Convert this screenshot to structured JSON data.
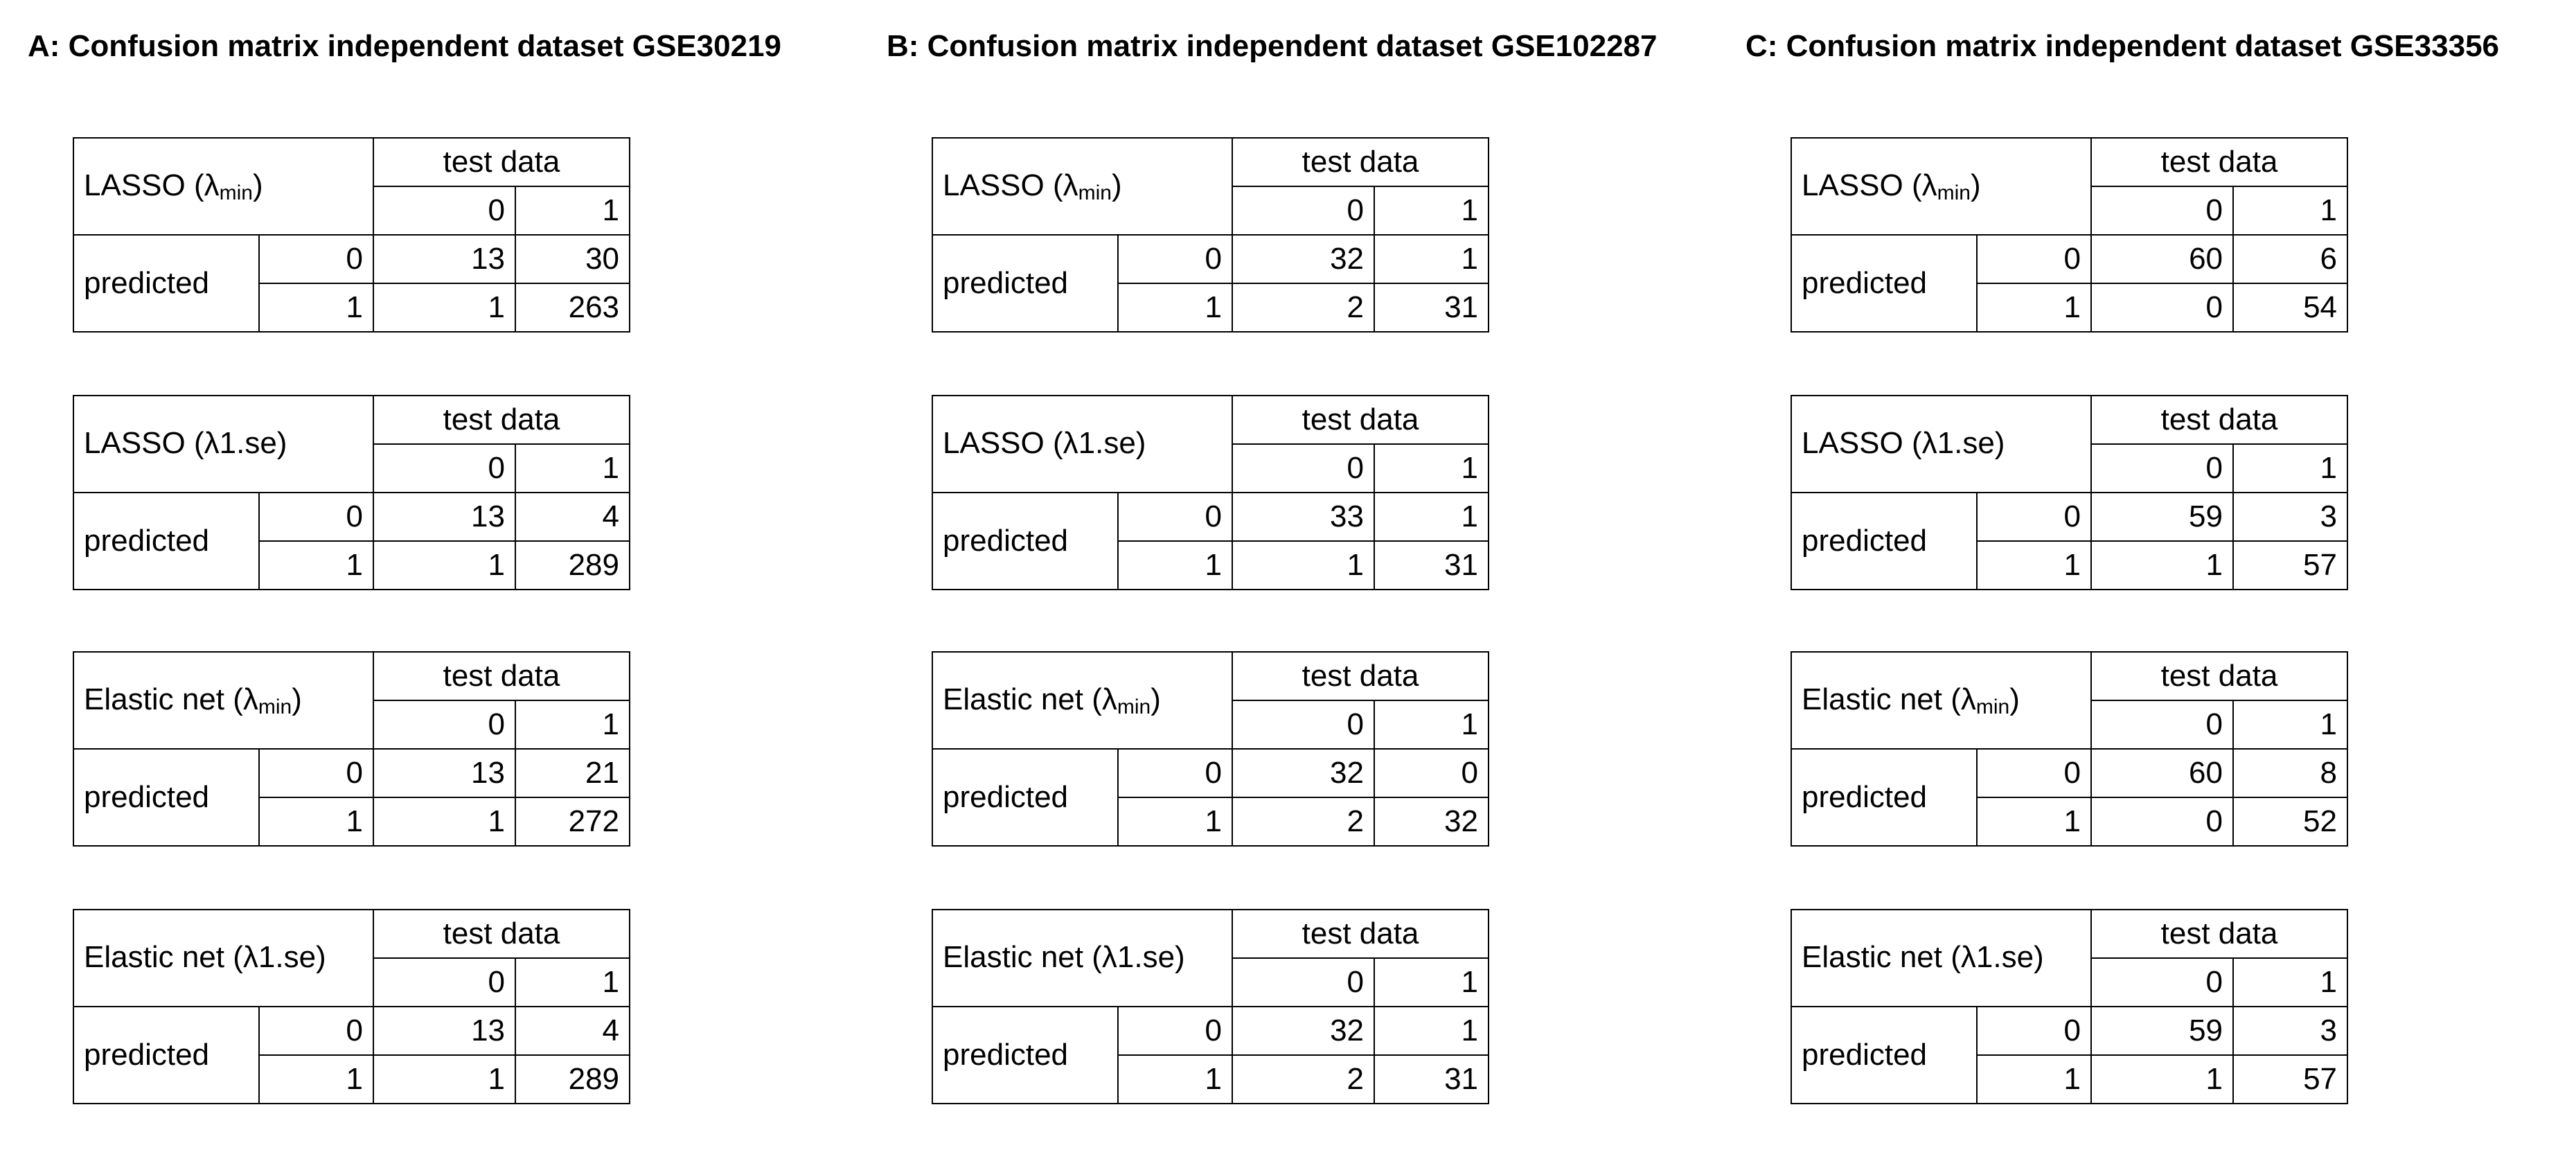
{
  "panels": [
    {
      "title": "A: Confusion matrix independent dataset GSE30219",
      "matrices": [
        {
          "model": "LASSO",
          "lambda_prefix": "(λ",
          "lambda_sub": "min",
          "lambda_suffix": ")",
          "header": "test data",
          "col0": "0",
          "col1": "1",
          "row_label": "predicted",
          "row0": "0",
          "row1": "1",
          "v00": "13",
          "v01": "30",
          "v10": "1",
          "v11": "263"
        },
        {
          "model": "LASSO",
          "lambda_prefix": "(λ1.se)",
          "lambda_sub": "",
          "lambda_suffix": "",
          "header": "test data",
          "col0": "0",
          "col1": "1",
          "row_label": "predicted",
          "row0": "0",
          "row1": "1",
          "v00": "13",
          "v01": "4",
          "v10": "1",
          "v11": "289"
        },
        {
          "model": "Elastic net",
          "lambda_prefix": "(λ",
          "lambda_sub": "min",
          "lambda_suffix": ")",
          "header": "test data",
          "col0": "0",
          "col1": "1",
          "row_label": "predicted",
          "row0": "0",
          "row1": "1",
          "v00": "13",
          "v01": "21",
          "v10": "1",
          "v11": "272"
        },
        {
          "model": "Elastic net",
          "lambda_prefix": "(λ1.se)",
          "lambda_sub": "",
          "lambda_suffix": "",
          "header": "test data",
          "col0": "0",
          "col1": "1",
          "row_label": "predicted",
          "row0": "0",
          "row1": "1",
          "v00": "13",
          "v01": "4",
          "v10": "1",
          "v11": "289"
        }
      ]
    },
    {
      "title": "B: Confusion matrix independent dataset GSE102287",
      "matrices": [
        {
          "model": "LASSO",
          "lambda_prefix": "(λ",
          "lambda_sub": "min",
          "lambda_suffix": ")",
          "header": "test data",
          "col0": "0",
          "col1": "1",
          "row_label": "predicted",
          "row0": "0",
          "row1": "1",
          "v00": "32",
          "v01": "1",
          "v10": "2",
          "v11": "31"
        },
        {
          "model": "LASSO",
          "lambda_prefix": "(λ1.se)",
          "lambda_sub": "",
          "lambda_suffix": "",
          "header": "test data",
          "col0": "0",
          "col1": "1",
          "row_label": "predicted",
          "row0": "0",
          "row1": "1",
          "v00": "33",
          "v01": "1",
          "v10": "1",
          "v11": "31"
        },
        {
          "model": "Elastic net",
          "lambda_prefix": "(λ",
          "lambda_sub": "min",
          "lambda_suffix": ")",
          "header": "test data",
          "col0": "0",
          "col1": "1",
          "row_label": "predicted",
          "row0": "0",
          "row1": "1",
          "v00": "32",
          "v01": "0",
          "v10": "2",
          "v11": "32"
        },
        {
          "model": "Elastic net",
          "lambda_prefix": "(λ1.se)",
          "lambda_sub": "",
          "lambda_suffix": "",
          "header": "test data",
          "col0": "0",
          "col1": "1",
          "row_label": "predicted",
          "row0": "0",
          "row1": "1",
          "v00": "32",
          "v01": "1",
          "v10": "2",
          "v11": "31"
        }
      ]
    },
    {
      "title": "C: Confusion matrix independent dataset GSE33356",
      "matrices": [
        {
          "model": "LASSO",
          "lambda_prefix": "(λ",
          "lambda_sub": "min",
          "lambda_suffix": ")",
          "header": "test data",
          "col0": "0",
          "col1": "1",
          "row_label": "predicted",
          "row0": "0",
          "row1": "1",
          "v00": "60",
          "v01": "6",
          "v10": "0",
          "v11": "54"
        },
        {
          "model": "LASSO",
          "lambda_prefix": "(λ1.se)",
          "lambda_sub": "",
          "lambda_suffix": "",
          "header": "test data",
          "col0": "0",
          "col1": "1",
          "row_label": "predicted",
          "row0": "0",
          "row1": "1",
          "v00": "59",
          "v01": "3",
          "v10": "1",
          "v11": "57"
        },
        {
          "model": "Elastic net",
          "lambda_prefix": "(λ",
          "lambda_sub": "min",
          "lambda_suffix": ")",
          "header": "test data",
          "col0": "0",
          "col1": "1",
          "row_label": "predicted",
          "row0": "0",
          "row1": "1",
          "v00": "60",
          "v01": "8",
          "v10": "0",
          "v11": "52"
        },
        {
          "model": "Elastic net",
          "lambda_prefix": "(λ1.se)",
          "lambda_sub": "",
          "lambda_suffix": "",
          "header": "test data",
          "col0": "0",
          "col1": "1",
          "row_label": "predicted",
          "row0": "0",
          "row1": "1",
          "v00": "59",
          "v01": "3",
          "v10": "1",
          "v11": "57"
        }
      ]
    }
  ]
}
